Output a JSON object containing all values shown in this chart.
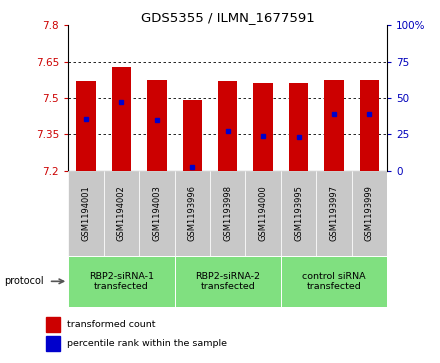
{
  "title": "GDS5355 / ILMN_1677591",
  "samples": [
    "GSM1194001",
    "GSM1194002",
    "GSM1194003",
    "GSM1193996",
    "GSM1193998",
    "GSM1194000",
    "GSM1193995",
    "GSM1193997",
    "GSM1193999"
  ],
  "bar_tops": [
    7.57,
    7.63,
    7.575,
    7.49,
    7.57,
    7.56,
    7.56,
    7.575,
    7.575
  ],
  "bar_bottoms": [
    7.2,
    7.2,
    7.2,
    7.2,
    7.2,
    7.2,
    7.2,
    7.2,
    7.2
  ],
  "percentile_values": [
    7.415,
    7.485,
    7.41,
    7.215,
    7.365,
    7.345,
    7.34,
    7.435,
    7.435
  ],
  "ylim": [
    7.2,
    7.8
  ],
  "yticks_left": [
    7.2,
    7.35,
    7.5,
    7.65,
    7.8
  ],
  "yticks_right": [
    0,
    25,
    50,
    75,
    100
  ],
  "groups": [
    {
      "label": "RBP2-siRNA-1\ntransfected",
      "start": 0,
      "end": 3
    },
    {
      "label": "RBP2-siRNA-2\ntransfected",
      "start": 3,
      "end": 6
    },
    {
      "label": "control siRNA\ntransfected",
      "start": 6,
      "end": 9
    }
  ],
  "bar_color": "#cc0000",
  "dot_color": "#0000cc",
  "bg_color": "#c8c8c8",
  "group_bg_color": "#80e080",
  "bar_width": 0.55,
  "grid_color": "#000000",
  "left_label_color": "#cc0000",
  "right_label_color": "#0000bb"
}
